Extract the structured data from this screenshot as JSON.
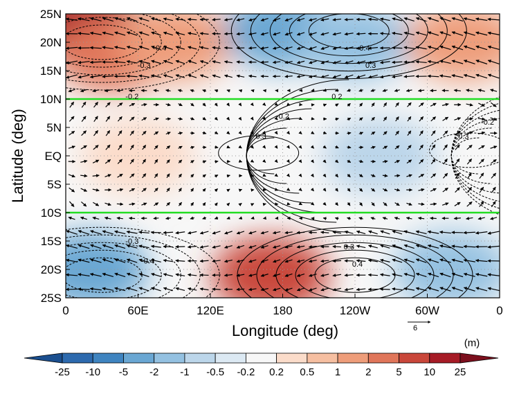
{
  "chart_data": {
    "type": "heatmap",
    "title": "",
    "xlabel": "Longitude (deg)",
    "ylabel": "Latitude (deg)",
    "x_ticks": [
      "0",
      "60E",
      "120E",
      "180",
      "120W",
      "60W",
      "0"
    ],
    "x_tick_values": [
      0,
      60,
      120,
      180,
      240,
      300,
      360
    ],
    "y_ticks": [
      "25N",
      "20N",
      "15N",
      "10N",
      "5N",
      "EQ",
      "5S",
      "10S",
      "15S",
      "20S",
      "25S"
    ],
    "y_tick_values": [
      25,
      20,
      15,
      10,
      5,
      0,
      -5,
      -10,
      -15,
      -20,
      -25
    ],
    "xlim": [
      0,
      360
    ],
    "ylim": [
      -25,
      25
    ],
    "grid": "dotted",
    "reference_lines": [
      {
        "lat": 10,
        "color": "#22dd22"
      },
      {
        "lat": -10,
        "color": "#22dd22"
      }
    ],
    "contour_labels": [
      {
        "text": "-0.4",
        "lon": 78,
        "lat": 19
      },
      {
        "text": "-0.3",
        "lon": 65,
        "lat": 16
      },
      {
        "text": "-0.2",
        "lon": 55,
        "lat": 10.5
      },
      {
        "text": "0.2",
        "lon": 225,
        "lat": 10.5
      },
      {
        "text": "0.3",
        "lon": 253,
        "lat": 16
      },
      {
        "text": "0.4",
        "lon": 248,
        "lat": 19
      },
      {
        "text": "-0.2",
        "lon": 180,
        "lat": 7
      },
      {
        "text": "0.3",
        "lon": 162,
        "lat": 3.5
      },
      {
        "text": "-0.2",
        "lon": 350,
        "lat": 6
      },
      {
        "text": "0.3",
        "lon": 330,
        "lat": 3.5
      },
      {
        "text": "-0.3",
        "lon": 55,
        "lat": -15
      },
      {
        "text": "-0.4",
        "lon": 68,
        "lat": -18.5
      },
      {
        "text": "0.3",
        "lon": 235,
        "lat": -16
      },
      {
        "text": "0.4",
        "lon": 242,
        "lat": -19
      }
    ],
    "vector_reference": {
      "value": "6"
    },
    "colorbar": {
      "unit": "(m)",
      "levels": [
        "-25",
        "-10",
        "-5",
        "-2",
        "-1",
        "-0.5",
        "-0.2",
        "0.2",
        "0.5",
        "1",
        "2",
        "5",
        "10",
        "25"
      ],
      "colors": [
        "#1b4f8f",
        "#2d6aae",
        "#3f84c0",
        "#6aa7d3",
        "#94c1e1",
        "#bcd6ea",
        "#dce9f3",
        "#f7f7f7",
        "#fbdcca",
        "#f6bfa1",
        "#ee9d7a",
        "#e0765a",
        "#c9473a",
        "#a61b26",
        "#7c0f1d"
      ]
    },
    "z_description_fields": [
      {
        "lon": 15,
        "lat": 23,
        "bin": 13
      },
      {
        "lon": 40,
        "lat": 18,
        "bin": 11
      },
      {
        "lon": 90,
        "lat": 20,
        "bin": 10
      },
      {
        "lon": 180,
        "lat": 22,
        "bin": 3
      },
      {
        "lon": 240,
        "lat": 20,
        "bin": 4
      },
      {
        "lon": 330,
        "lat": 20,
        "bin": 10
      },
      {
        "lon": 60,
        "lat": 0,
        "bin": 8
      },
      {
        "lon": 160,
        "lat": 0,
        "bin": 7
      },
      {
        "lon": 260,
        "lat": 0,
        "bin": 5
      },
      {
        "lon": 20,
        "lat": -20,
        "bin": 3
      },
      {
        "lon": 170,
        "lat": -21,
        "bin": 12
      },
      {
        "lon": 320,
        "lat": -20,
        "bin": 4
      }
    ]
  }
}
